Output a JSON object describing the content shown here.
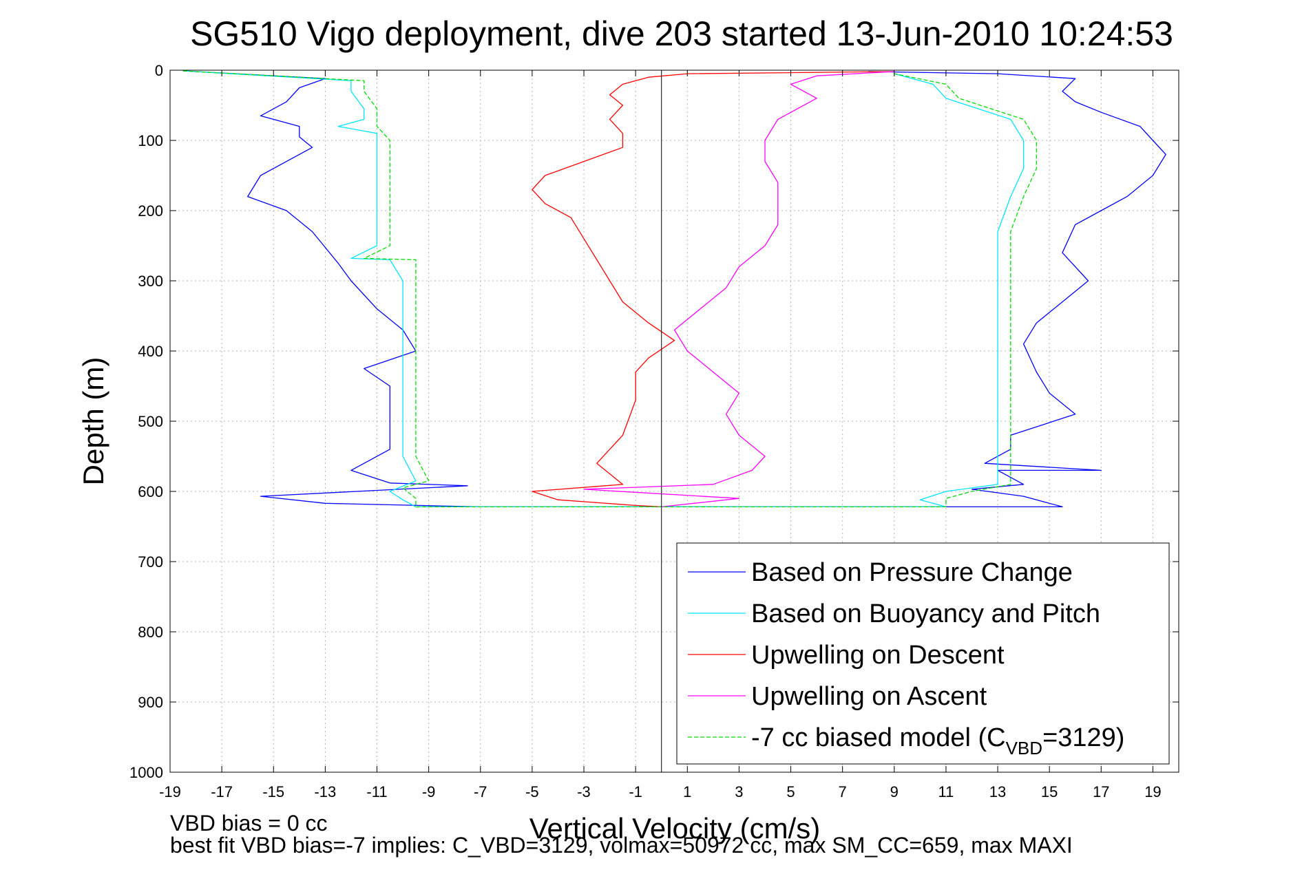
{
  "chart_data": {
    "type": "line",
    "title": "SG510 Vigo deployment, dive 203 started 13-Jun-2010 10:24:53",
    "xlabel": "Vertical Velocity (cm/s)",
    "ylabel": "Depth (m)",
    "xlim": [
      -19,
      20
    ],
    "ylim": [
      0,
      1000
    ],
    "y_reversed": true,
    "grid": true,
    "legend_position": "bottom-right",
    "xticks": [
      -19,
      -17,
      -15,
      -13,
      -11,
      -9,
      -7,
      -5,
      -3,
      -1,
      1,
      3,
      5,
      7,
      9,
      11,
      13,
      15,
      17,
      19
    ],
    "yticks": [
      0,
      100,
      200,
      300,
      400,
      500,
      600,
      700,
      800,
      900,
      1000
    ],
    "zero_line_x": 0,
    "series": [
      {
        "name": "Based on Pressure Change",
        "color": "#0000ff",
        "style": "solid",
        "legend_text": "Based on Pressure Change",
        "points": [
          [
            -18.5,
            1
          ],
          [
            -13,
            12
          ],
          [
            -14,
            25
          ],
          [
            -14.5,
            45
          ],
          [
            -15.5,
            65
          ],
          [
            -14,
            80
          ],
          [
            -14,
            95
          ],
          [
            -13.5,
            110
          ],
          [
            -15.5,
            150
          ],
          [
            -16,
            180
          ],
          [
            -14.5,
            200
          ],
          [
            -13.5,
            230
          ],
          [
            -12.5,
            275
          ],
          [
            -12,
            300
          ],
          [
            -11,
            340
          ],
          [
            -10,
            370
          ],
          [
            -9.5,
            400
          ],
          [
            -11.5,
            425
          ],
          [
            -10.5,
            450
          ],
          [
            -10.5,
            500
          ],
          [
            -10.5,
            540
          ],
          [
            -12,
            570
          ],
          [
            -10.5,
            588
          ],
          [
            -7.5,
            592
          ],
          [
            -15.5,
            607
          ],
          [
            -13,
            617
          ],
          [
            -7,
            622
          ],
          [
            0,
            622
          ],
          [
            15.5,
            622
          ],
          [
            14,
            607
          ],
          [
            12,
            597
          ],
          [
            14,
            590
          ],
          [
            13,
            570
          ],
          [
            17,
            570
          ],
          [
            12.5,
            560
          ],
          [
            13.5,
            540
          ],
          [
            13.5,
            520
          ],
          [
            16,
            490
          ],
          [
            15,
            460
          ],
          [
            14.5,
            430
          ],
          [
            14,
            390
          ],
          [
            14.5,
            360
          ],
          [
            15.5,
            330
          ],
          [
            16.5,
            300
          ],
          [
            15.5,
            260
          ],
          [
            16,
            220
          ],
          [
            17,
            200
          ],
          [
            18,
            180
          ],
          [
            19,
            150
          ],
          [
            19.5,
            120
          ],
          [
            19,
            100
          ],
          [
            18.5,
            80
          ],
          [
            17,
            60
          ],
          [
            16,
            45
          ],
          [
            15.5,
            30
          ],
          [
            16,
            12
          ],
          [
            13,
            5
          ],
          [
            8,
            2
          ]
        ]
      },
      {
        "name": "Based on Buoyancy and Pitch",
        "color": "#00e5ff",
        "style": "solid",
        "legend_text": "Based on Buoyancy and Pitch",
        "points": [
          [
            -18.5,
            1
          ],
          [
            -12,
            15
          ],
          [
            -12,
            30
          ],
          [
            -11.5,
            55
          ],
          [
            -11.5,
            70
          ],
          [
            -12.5,
            80
          ],
          [
            -11,
            90
          ],
          [
            -11,
            110
          ],
          [
            -11,
            150
          ],
          [
            -11,
            200
          ],
          [
            -11,
            250
          ],
          [
            -12,
            268
          ],
          [
            -10.5,
            270
          ],
          [
            -10,
            300
          ],
          [
            -10,
            350
          ],
          [
            -10,
            400
          ],
          [
            -10,
            450
          ],
          [
            -10,
            500
          ],
          [
            -10,
            550
          ],
          [
            -9.5,
            585
          ],
          [
            -10.5,
            600
          ],
          [
            -10,
            612
          ],
          [
            -9.5,
            622
          ],
          [
            0,
            622
          ],
          [
            11,
            622
          ],
          [
            10,
            612
          ],
          [
            11,
            600
          ],
          [
            13,
            590
          ],
          [
            13,
            560
          ],
          [
            13,
            520
          ],
          [
            13,
            480
          ],
          [
            13,
            430
          ],
          [
            13,
            380
          ],
          [
            13,
            330
          ],
          [
            13,
            280
          ],
          [
            13,
            230
          ],
          [
            13.5,
            180
          ],
          [
            14,
            140
          ],
          [
            14,
            100
          ],
          [
            13.5,
            70
          ],
          [
            11,
            40
          ],
          [
            10.5,
            20
          ],
          [
            9,
            5
          ]
        ]
      },
      {
        "name": "Upwelling on Descent",
        "color": "#ff0000",
        "style": "solid",
        "legend_text": "Upwelling on Descent",
        "points": [
          [
            9,
            2
          ],
          [
            1,
            5
          ],
          [
            -0.5,
            10
          ],
          [
            -1.5,
            20
          ],
          [
            -2,
            35
          ],
          [
            -1.5,
            50
          ],
          [
            -2,
            70
          ],
          [
            -1.5,
            90
          ],
          [
            -1.5,
            110
          ],
          [
            -3,
            130
          ],
          [
            -4.5,
            150
          ],
          [
            -5,
            170
          ],
          [
            -4.5,
            190
          ],
          [
            -3.5,
            210
          ],
          [
            -3,
            240
          ],
          [
            -2.5,
            270
          ],
          [
            -2,
            300
          ],
          [
            -1.5,
            330
          ],
          [
            -0.5,
            360
          ],
          [
            0.5,
            385
          ],
          [
            -0.5,
            410
          ],
          [
            -1,
            430
          ],
          [
            -1,
            470
          ],
          [
            -1.5,
            520
          ],
          [
            -2.5,
            560
          ],
          [
            -1.5,
            590
          ],
          [
            -5,
            600
          ],
          [
            -4,
            612
          ],
          [
            -1,
            620
          ],
          [
            0,
            622
          ]
        ]
      },
      {
        "name": "Upwelling on Ascent",
        "color": "#ff00ff",
        "style": "solid",
        "legend_text": "Upwelling on Ascent",
        "points": [
          [
            0,
            622
          ],
          [
            3,
            610
          ],
          [
            -3,
            597
          ],
          [
            2,
            590
          ],
          [
            3.5,
            570
          ],
          [
            4,
            550
          ],
          [
            3,
            520
          ],
          [
            2.5,
            490
          ],
          [
            3,
            460
          ],
          [
            2,
            430
          ],
          [
            1,
            400
          ],
          [
            0.5,
            370
          ],
          [
            1.5,
            340
          ],
          [
            2.5,
            310
          ],
          [
            3,
            280
          ],
          [
            4,
            250
          ],
          [
            4.5,
            220
          ],
          [
            4.5,
            190
          ],
          [
            4.5,
            160
          ],
          [
            4,
            130
          ],
          [
            4,
            100
          ],
          [
            4.5,
            70
          ],
          [
            6,
            40
          ],
          [
            5,
            20
          ],
          [
            6,
            8
          ],
          [
            9,
            2
          ]
        ]
      },
      {
        "name": "-7 cc biased model",
        "color": "#00dd00",
        "style": "dashed",
        "legend_text": "-7 cc biased model (C",
        "legend_sub": "VBD",
        "legend_suffix": "=3129)",
        "points": [
          [
            -18.5,
            1
          ],
          [
            -11.5,
            15
          ],
          [
            -11.5,
            30
          ],
          [
            -11,
            55
          ],
          [
            -11,
            80
          ],
          [
            -10.5,
            100
          ],
          [
            -10.5,
            150
          ],
          [
            -10.5,
            200
          ],
          [
            -10.5,
            250
          ],
          [
            -11.5,
            268
          ],
          [
            -9.5,
            270
          ],
          [
            -9.5,
            300
          ],
          [
            -9.5,
            350
          ],
          [
            -9.5,
            400
          ],
          [
            -9.5,
            450
          ],
          [
            -9.5,
            500
          ],
          [
            -9.5,
            550
          ],
          [
            -9,
            585
          ],
          [
            -10,
            595
          ],
          [
            -9.5,
            610
          ],
          [
            -9.5,
            622
          ],
          [
            0,
            622
          ],
          [
            11,
            622
          ],
          [
            11,
            610
          ],
          [
            12,
            600
          ],
          [
            13.5,
            590
          ],
          [
            13.5,
            560
          ],
          [
            13.5,
            520
          ],
          [
            13.5,
            480
          ],
          [
            13.5,
            430
          ],
          [
            13.5,
            380
          ],
          [
            13.5,
            330
          ],
          [
            13.5,
            280
          ],
          [
            13.5,
            230
          ],
          [
            14,
            180
          ],
          [
            14.5,
            140
          ],
          [
            14.5,
            100
          ],
          [
            14,
            70
          ],
          [
            11.5,
            40
          ],
          [
            11,
            20
          ],
          [
            9,
            5
          ]
        ]
      }
    ]
  },
  "footer": {
    "line1": "VBD bias = 0 cc",
    "line2": "best fit VBD bias=-7 implies: C_VBD=3129, volmax=50972 cc, max SM_CC=659, max MAXI"
  }
}
